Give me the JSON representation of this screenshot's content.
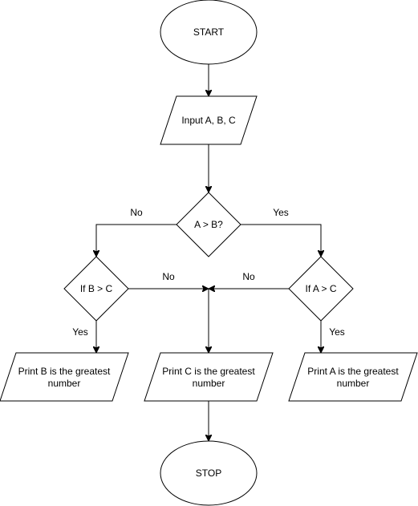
{
  "nodes": {
    "start": "START",
    "input": "Input A, B, C",
    "decision_main": "A > B?",
    "decision_left": "If B > C",
    "decision_right": "If A > C",
    "print_b": [
      "Print B is the greatest",
      "number"
    ],
    "print_c": [
      "Print C is the greatest",
      "number"
    ],
    "print_a": [
      "Print A is the greatest",
      "number"
    ],
    "stop": "STOP"
  },
  "edges": {
    "main_no": "No",
    "main_yes": "Yes",
    "left_no": "No",
    "right_no": "No",
    "left_yes": "Yes",
    "right_yes": "Yes"
  }
}
